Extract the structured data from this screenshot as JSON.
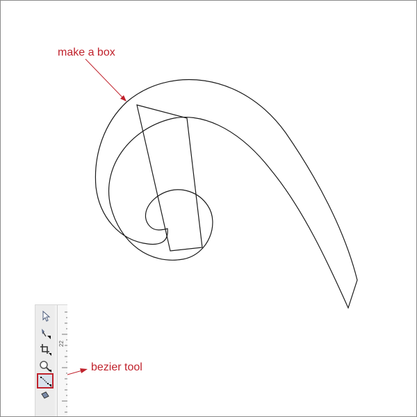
{
  "annotations": {
    "make_box": "make a box",
    "bezier_tool": "bezier tool"
  },
  "colors": {
    "annotation": "#c0222c",
    "stroke": "#1a1a1a",
    "highlight": "#c0222c"
  },
  "toolbox": {
    "tools": [
      {
        "name": "pick-tool",
        "icon": "arrow-pointer-icon"
      },
      {
        "name": "shape-tool",
        "icon": "shape-node-icon"
      },
      {
        "name": "crop-tool",
        "icon": "crop-icon"
      },
      {
        "name": "zoom-tool",
        "icon": "magnifier-icon"
      },
      {
        "name": "bezier-tool",
        "icon": "bezier-curve-icon",
        "active": true
      },
      {
        "name": "smart-fill-tool",
        "icon": "fill-icon"
      }
    ],
    "ruler_label": "22"
  }
}
